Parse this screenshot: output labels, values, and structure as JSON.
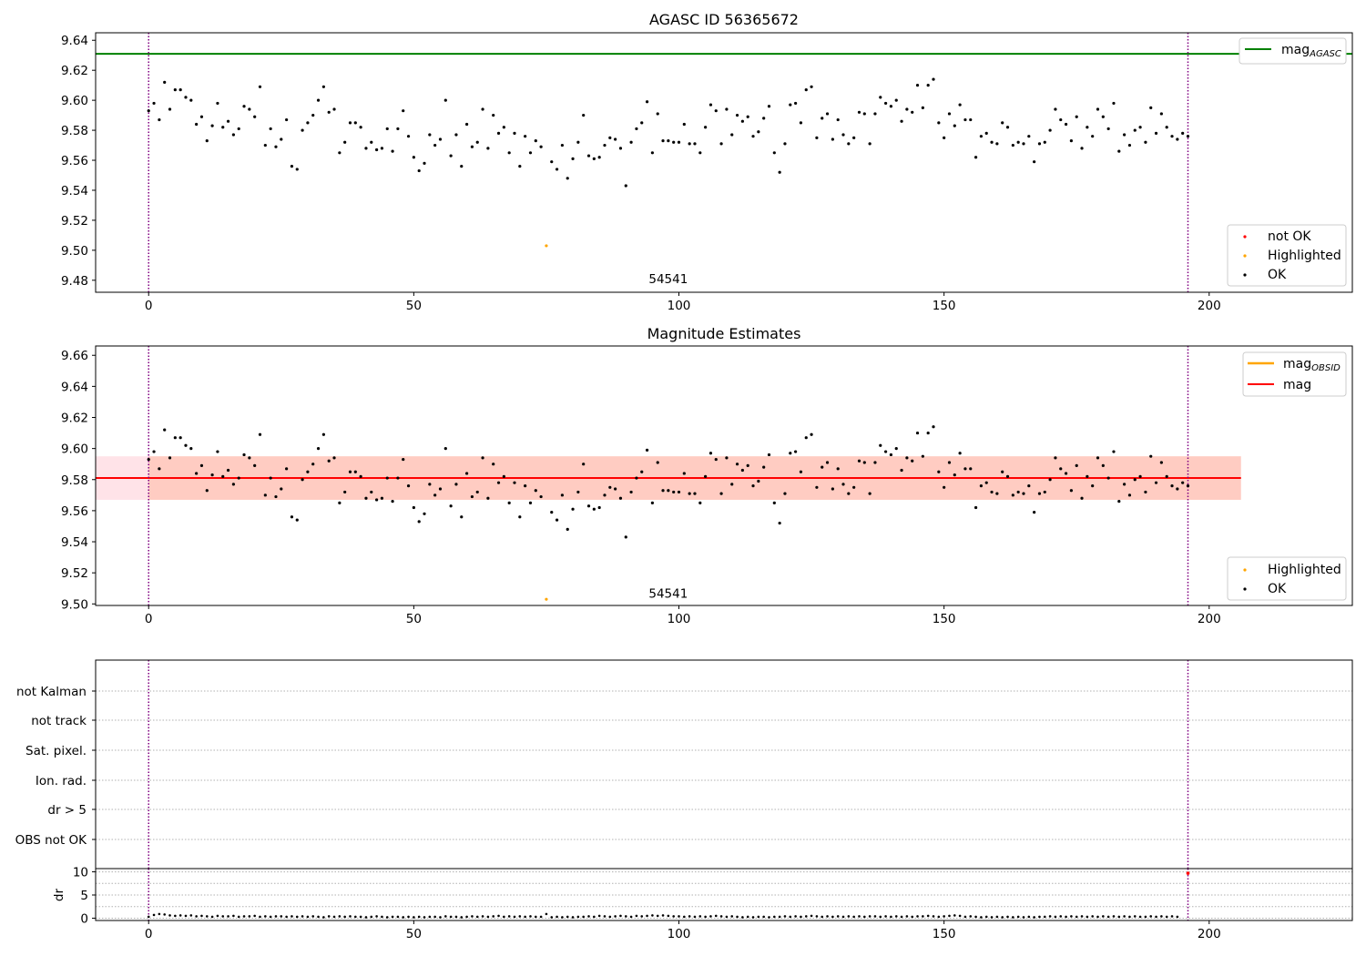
{
  "colors": {
    "ok": "#000000",
    "not_ok": "#ff0000",
    "highlighted": "#ffa500",
    "agasc_line": "#008000",
    "mag_line": "#ff0000",
    "obsid_line": "#ffa500",
    "band_pink": "#ffc0cb",
    "band_orange": "#ffa07a",
    "vline": "#800080",
    "grid": "#b0b0b0"
  },
  "chart_data": [
    {
      "type": "scatter",
      "title": "AGASC ID 56365672",
      "xlim": [
        -10,
        227
      ],
      "ylim": [
        9.472,
        9.645
      ],
      "xticks": [
        0,
        50,
        100,
        150,
        200
      ],
      "yticks": [
        9.48,
        9.5,
        9.52,
        9.54,
        9.56,
        9.58,
        9.6,
        9.62,
        9.64
      ],
      "ytick_labels": [
        "9.48",
        "9.50",
        "9.52",
        "9.54",
        "9.56",
        "9.58",
        "9.60",
        "9.62",
        "9.64"
      ],
      "annotation": {
        "x": 98,
        "y": 9.478,
        "text": "54541"
      },
      "hline": {
        "y": 9.631,
        "label": "mag",
        "label_sub": "AGASC"
      },
      "vlines": [
        0,
        196
      ],
      "legend_points": [
        "not OK",
        "Highlighted",
        "OK"
      ],
      "highlighted_points": [
        {
          "x": 75,
          "y": 9.503
        }
      ]
    },
    {
      "type": "scatter",
      "title": "Magnitude Estimates",
      "xlim": [
        -10,
        227
      ],
      "ylim": [
        9.499,
        9.666
      ],
      "xticks": [
        0,
        50,
        100,
        150,
        200
      ],
      "yticks": [
        9.5,
        9.52,
        9.54,
        9.56,
        9.58,
        9.6,
        9.62,
        9.64,
        9.66
      ],
      "ytick_labels": [
        "9.50",
        "9.52",
        "9.54",
        "9.56",
        "9.58",
        "9.60",
        "9.62",
        "9.64",
        "9.66"
      ],
      "annotation": {
        "x": 98,
        "y": 9.504,
        "text": "54541"
      },
      "mag": 9.581,
      "band_mag": [
        9.567,
        9.595
      ],
      "band_obsid": [
        9.567,
        9.595
      ],
      "band_x": [
        -10,
        206
      ],
      "line_x": [
        -10,
        206
      ],
      "vlines": [
        0,
        196
      ],
      "legend_lines": [
        {
          "label": "mag",
          "sub": "OBSID"
        },
        {
          "label": "mag",
          "sub": ""
        }
      ],
      "legend_points": [
        "Highlighted",
        "OK"
      ],
      "highlighted_points": [
        {
          "x": 75,
          "y": 9.503
        }
      ]
    },
    {
      "type": "scatter",
      "title": "",
      "xlim": [
        -10,
        227
      ],
      "categories": [
        "not Kalman",
        "not track",
        "Sat. pixel.",
        "Ion. rad.",
        "dr > 5",
        "OBS not OK"
      ],
      "flags": [],
      "vlines": [
        0,
        196
      ]
    },
    {
      "type": "scatter",
      "title": "",
      "ylabel": "dr",
      "xlim": [
        -10,
        227
      ],
      "ylim": [
        -0.5,
        10.7
      ],
      "yticks": [
        0,
        5,
        10
      ],
      "ytick_labels": [
        "0",
        "5",
        "10"
      ],
      "xticks": [
        0,
        50,
        100,
        150,
        200
      ],
      "xtick_labels": [
        "0",
        "50",
        "100",
        "150",
        "200"
      ],
      "vlines": [
        0,
        196
      ],
      "not_ok_points": [
        {
          "x": 196,
          "y": 9.7
        }
      ],
      "dr_values": [
        0.3,
        0.7,
        0.9,
        0.8,
        0.6,
        0.5,
        0.6,
        0.5,
        0.6,
        0.4,
        0.5,
        0.4,
        0.3,
        0.5,
        0.4,
        0.4,
        0.5,
        0.3,
        0.4,
        0.4,
        0.5,
        0.3,
        0.4,
        0.3,
        0.4,
        0.4,
        0.3,
        0.4,
        0.3,
        0.4,
        0.3,
        0.4,
        0.3,
        0.2,
        0.4,
        0.3,
        0.4,
        0.3,
        0.4,
        0.3,
        0.3,
        0.2,
        0.3,
        0.4,
        0.3,
        0.2,
        0.3,
        0.3,
        0.2,
        0.3,
        0.2,
        0.3,
        0.2,
        0.3,
        0.3,
        0.2,
        0.4,
        0.3,
        0.3,
        0.2,
        0.3,
        0.4,
        0.3,
        0.4,
        0.3,
        0.4,
        0.5,
        0.3,
        0.4,
        0.3,
        0.4,
        0.3,
        0.4,
        0.3,
        0.3,
        0.9,
        0.2,
        0.3,
        0.2,
        0.3,
        0.2,
        0.3,
        0.3,
        0.4,
        0.3,
        0.5,
        0.4,
        0.3,
        0.4,
        0.5,
        0.4,
        0.3,
        0.5,
        0.4,
        0.5,
        0.6,
        0.5,
        0.6,
        0.5,
        0.4,
        0.4,
        0.3,
        0.4,
        0.3,
        0.4,
        0.3,
        0.4,
        0.5,
        0.4,
        0.3,
        0.4,
        0.3,
        0.2,
        0.3,
        0.2,
        0.3,
        0.3,
        0.2,
        0.3,
        0.3,
        0.4,
        0.3,
        0.4,
        0.3,
        0.4,
        0.5,
        0.4,
        0.3,
        0.4,
        0.3,
        0.4,
        0.3,
        0.4,
        0.3,
        0.4,
        0.3,
        0.4,
        0.4,
        0.3,
        0.4,
        0.3,
        0.4,
        0.3,
        0.4,
        0.3,
        0.4,
        0.4,
        0.5,
        0.4,
        0.3,
        0.4,
        0.5,
        0.6,
        0.5,
        0.3,
        0.4,
        0.3,
        0.2,
        0.3,
        0.2,
        0.3,
        0.2,
        0.3,
        0.2,
        0.3,
        0.2,
        0.3,
        0.2,
        0.3,
        0.3,
        0.4,
        0.3,
        0.4,
        0.3,
        0.4,
        0.3,
        0.4,
        0.3,
        0.4,
        0.3,
        0.4,
        0.3,
        0.4,
        0.3,
        0.4,
        0.3,
        0.4,
        0.3,
        0.3,
        0.4,
        0.3,
        0.4,
        0.3,
        0.4,
        0.3
      ]
    }
  ],
  "mags": [
    9.593,
    9.598,
    9.587,
    9.612,
    9.594,
    9.607,
    9.607,
    9.602,
    9.6,
    9.584,
    9.589,
    9.573,
    9.583,
    9.598,
    9.582,
    9.586,
    9.577,
    9.581,
    9.596,
    9.594,
    9.589,
    9.609,
    9.57,
    9.581,
    9.569,
    9.574,
    9.587,
    9.556,
    9.554,
    9.58,
    9.585,
    9.59,
    9.6,
    9.609,
    9.592,
    9.594,
    9.565,
    9.572,
    9.585,
    9.585,
    9.582,
    9.568,
    9.572,
    9.567,
    9.568,
    9.581,
    9.566,
    9.581,
    9.593,
    9.576,
    9.562,
    9.553,
    9.558,
    9.577,
    9.57,
    9.574,
    9.6,
    9.563,
    9.577,
    9.556,
    9.584,
    9.569,
    9.572,
    9.594,
    9.568,
    9.59,
    9.578,
    9.582,
    9.565,
    9.578,
    9.556,
    9.576,
    9.565,
    9.573,
    9.569,
    9.503,
    9.559,
    9.554,
    9.57,
    9.548,
    9.561,
    9.572,
    9.59,
    9.563,
    9.561,
    9.562,
    9.57,
    9.575,
    9.574,
    9.568,
    9.543,
    9.572,
    9.581,
    9.585,
    9.599,
    9.565,
    9.591,
    9.573,
    9.573,
    9.572,
    9.572,
    9.584,
    9.571,
    9.571,
    9.565,
    9.582,
    9.597,
    9.593,
    9.571,
    9.594,
    9.577,
    9.59,
    9.586,
    9.589,
    9.576,
    9.579,
    9.588,
    9.596,
    9.565,
    9.552,
    9.571,
    9.597,
    9.598,
    9.585,
    9.607,
    9.609,
    9.575,
    9.588,
    9.591,
    9.574,
    9.587,
    9.577,
    9.571,
    9.575,
    9.592,
    9.591,
    9.571,
    9.591,
    9.602,
    9.598,
    9.596,
    9.6,
    9.586,
    9.594,
    9.592,
    9.61,
    9.595,
    9.61,
    9.614,
    9.585,
    9.575,
    9.591,
    9.583,
    9.597,
    9.587,
    9.587,
    9.562,
    9.576,
    9.578,
    9.572,
    9.571,
    9.585,
    9.582,
    9.57,
    9.572,
    9.571,
    9.576,
    9.559,
    9.571,
    9.572,
    9.58,
    9.594,
    9.587,
    9.584,
    9.573,
    9.589,
    9.568,
    9.582,
    9.576,
    9.594,
    9.589,
    9.581,
    9.598,
    9.566,
    9.577,
    9.57,
    9.58,
    9.582,
    9.572,
    9.595,
    9.578,
    9.591,
    9.582,
    9.576,
    9.574,
    9.578,
    9.576
  ]
}
